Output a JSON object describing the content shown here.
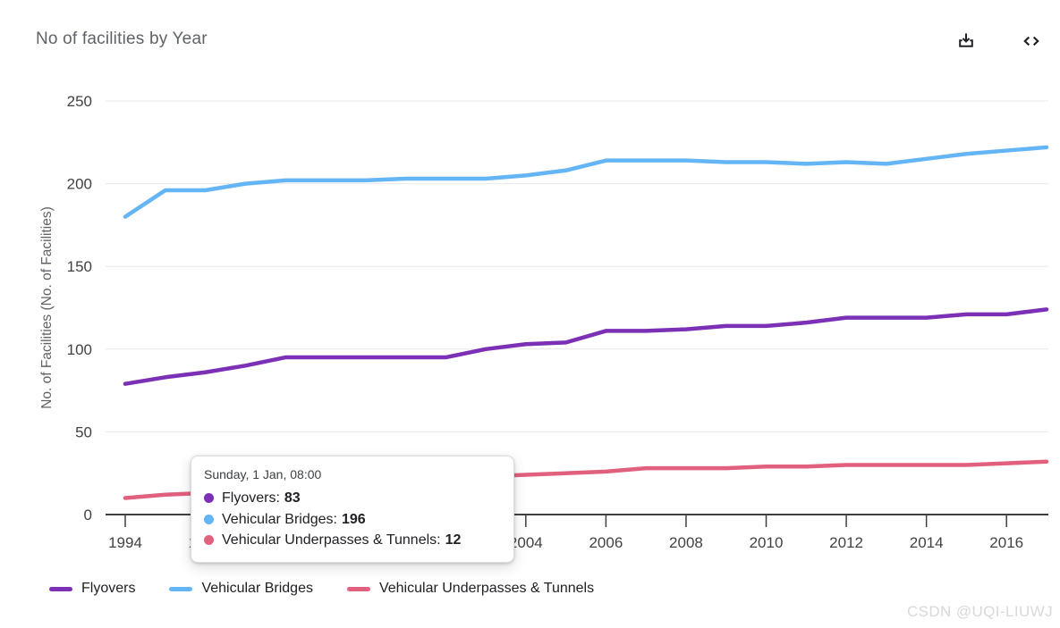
{
  "header": {
    "title": "No of facilities by Year",
    "icons": [
      {
        "name": "download-icon",
        "meaning": "download chart"
      },
      {
        "name": "code-icon",
        "meaning": "embed / view code"
      }
    ]
  },
  "chart_data": {
    "type": "line",
    "title": "No of facilities by Year",
    "xlabel": "",
    "ylabel": "No. of Facilities (No. of Facilities)",
    "ylim": [
      0,
      250
    ],
    "yticks": [
      0,
      50,
      100,
      150,
      200,
      250
    ],
    "xticks": [
      1994,
      1996,
      1998,
      2000,
      2002,
      2004,
      2006,
      2008,
      2010,
      2012,
      2014,
      2016
    ],
    "grid": true,
    "legend_position": "bottom",
    "x": [
      1994,
      1995,
      1996,
      1997,
      1998,
      1999,
      2000,
      2001,
      2002,
      2003,
      2004,
      2005,
      2006,
      2007,
      2008,
      2009,
      2010,
      2011,
      2012,
      2013,
      2014,
      2015,
      2016,
      2017
    ],
    "series": [
      {
        "name": "Flyovers",
        "color": "#7c30b5",
        "values": [
          79,
          83,
          86,
          90,
          95,
          95,
          95,
          95,
          95,
          100,
          103,
          104,
          111,
          111,
          112,
          114,
          114,
          116,
          119,
          119,
          119,
          121,
          121,
          124
        ]
      },
      {
        "name": "Vehicular Bridges",
        "color": "#64b5f6",
        "values": [
          180,
          196,
          196,
          200,
          202,
          202,
          202,
          203,
          203,
          203,
          205,
          208,
          214,
          214,
          214,
          213,
          213,
          212,
          213,
          212,
          215,
          218,
          220,
          222
        ]
      },
      {
        "name": "Vehicular Underpasses & Tunnels",
        "color": "#e0607e",
        "values": [
          10,
          12,
          13,
          15,
          16,
          17,
          19,
          20,
          22,
          23,
          24,
          25,
          26,
          28,
          28,
          28,
          29,
          29,
          30,
          30,
          30,
          30,
          31,
          32
        ]
      }
    ]
  },
  "tooltip": {
    "title": "Sunday, 1 Jan, 08:00",
    "rows": [
      {
        "label": "Flyovers",
        "value": "83",
        "color": "#7c30b5"
      },
      {
        "label": "Vehicular Bridges",
        "value": "196",
        "color": "#64b5f6"
      },
      {
        "label": "Vehicular Underpasses & Tunnels",
        "value": "12",
        "color": "#e0607e"
      }
    ]
  },
  "watermark": "CSDN @UQI-LIUWJ",
  "colors": {
    "axis_text": "#424242",
    "axis_line": "#3c4043",
    "grid": "#e8e8e8",
    "title_text": "#5f6368",
    "ylabel_text": "#5f6368",
    "legend_text": "#202124",
    "watermark_text": "#d9d9d9"
  }
}
